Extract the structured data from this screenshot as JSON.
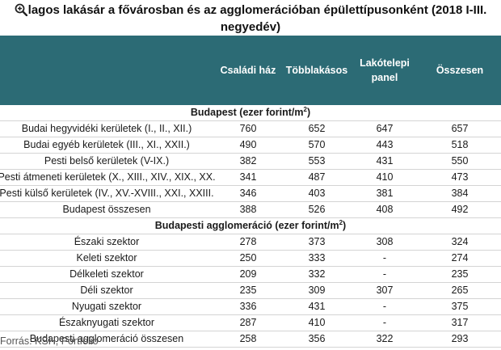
{
  "title": {
    "line1": "lagos lakásár a fővárosban és az agglomerációban épülettípusonként (2018 I-III.",
    "line2": "negyedév)",
    "zoom_icon": "magnifier-plus-icon"
  },
  "header": {
    "col1": "Családi ház",
    "col2": "Többlakásos",
    "col3a": "Lakótelepi",
    "col3b": "panel",
    "col4": "Összesen"
  },
  "sections": {
    "budapest": "Budapest (ezer forint/m",
    "budapest_sup": "2",
    "budapest_close": ")",
    "agglo": "Budapesti agglomeráció (ezer forint/m",
    "agglo_sup": "2",
    "agglo_close": ")"
  },
  "budapest_rows": [
    {
      "label": "Budai hegyvidéki kerületek (I., II., XII.)",
      "c1": "760",
      "c2": "652",
      "c3": "647",
      "c4": "657"
    },
    {
      "label": "Budai egyéb kerületek (III., XI., XXII.)",
      "c1": "490",
      "c2": "570",
      "c3": "443",
      "c4": "518"
    },
    {
      "label": "Pesti belső kerületek (V-IX.)",
      "c1": "382",
      "c2": "553",
      "c3": "431",
      "c4": "550"
    },
    {
      "label": "Pesti átmeneti kerületek (X., XIII., XIV., XIX., XX.",
      "c1": "341",
      "c2": "487",
      "c3": "410",
      "c4": "473"
    },
    {
      "label": "Pesti külső kerületek (IV., XV.-XVIII., XXI., XXIII.",
      "c1": "346",
      "c2": "403",
      "c3": "381",
      "c4": "384"
    },
    {
      "label": "Budapest összesen",
      "c1": "388",
      "c2": "526",
      "c3": "408",
      "c4": "492"
    }
  ],
  "agglo_rows": [
    {
      "label": "Északi szektor",
      "c1": "278",
      "c2": "373",
      "c3": "308",
      "c4": "324"
    },
    {
      "label": "Keleti szektor",
      "c1": "250",
      "c2": "333",
      "c3": "-",
      "c4": "274"
    },
    {
      "label": "Délkeleti szektor",
      "c1": "209",
      "c2": "332",
      "c3": "-",
      "c4": "235"
    },
    {
      "label": "Déli szektor",
      "c1": "235",
      "c2": "309",
      "c3": "307",
      "c4": "265"
    },
    {
      "label": "Nyugati szektor",
      "c1": "336",
      "c2": "431",
      "c3": "-",
      "c4": "375"
    },
    {
      "label": "Északnyugati szektor",
      "c1": "287",
      "c2": "410",
      "c3": "-",
      "c4": "317"
    },
    {
      "label": "Budapesti agglomeráció összesen",
      "c1": "258",
      "c2": "356",
      "c3": "322",
      "c4": "293"
    }
  ],
  "source": "Forrás: KSH, Portfolio",
  "colors": {
    "header_bg": "#2c6b75",
    "header_text": "#ffffff"
  }
}
